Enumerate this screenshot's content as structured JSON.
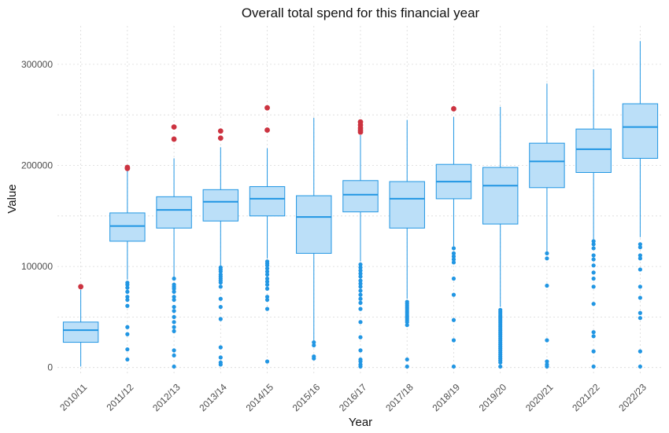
{
  "chart_data": {
    "type": "boxplot",
    "title": "Overall total spend for this financial year",
    "xlabel": "Year",
    "ylabel": "Value",
    "ylim": [
      -8000,
      338000
    ],
    "yticks": [
      0,
      100000,
      200000,
      300000
    ],
    "ytick_labels": [
      "0",
      "100000",
      "200000",
      "300000"
    ],
    "grid": true,
    "colors": {
      "box_fill": "#bbdff8",
      "box_line": "#2196e3",
      "outlier": "#2196e3",
      "max_outlier": "#cc3340"
    },
    "categories": [
      "2010/11",
      "2011/12",
      "2012/13",
      "2013/14",
      "2014/15",
      "2015/16",
      "2016/17",
      "2017/18",
      "2018/19",
      "2019/20",
      "2020/21",
      "2021/22",
      "2022/23"
    ],
    "boxes": [
      {
        "category": "2010/11",
        "whisker_low": 1000,
        "q1": 25000,
        "median": 37000,
        "q3": 45000,
        "whisker_high": 77000,
        "outliers": [],
        "max_outliers": [
          80000
        ]
      },
      {
        "category": "2011/12",
        "whisker_low": 87000,
        "q1": 125000,
        "median": 140000,
        "q3": 153000,
        "whisker_high": 195000,
        "outliers": [
          84000,
          82000,
          79000,
          75000,
          70000,
          67000,
          61000,
          40000,
          33000,
          18000,
          8000
        ],
        "max_outliers": [
          197000,
          198000
        ]
      },
      {
        "category": "2012/13",
        "whisker_low": 90000,
        "q1": 138000,
        "median": 156000,
        "q3": 169000,
        "whisker_high": 207000,
        "outliers": [
          88000,
          82000,
          80000,
          78000,
          75000,
          70000,
          67000,
          60000,
          56000,
          50000,
          45000,
          40000,
          36000,
          17000,
          12000,
          1000
        ],
        "max_outliers": [
          226000,
          238000
        ]
      },
      {
        "category": "2013/14",
        "whisker_low": 100000,
        "q1": 145000,
        "median": 164000,
        "q3": 176000,
        "whisker_high": 218000,
        "outliers": [
          99000,
          97000,
          95000,
          92000,
          90000,
          88000,
          86000,
          84000,
          80000,
          68000,
          60000,
          48000,
          20000,
          10000,
          5000,
          3000
        ],
        "max_outliers": [
          227000,
          234000
        ]
      },
      {
        "category": "2014/15",
        "whisker_low": 108000,
        "q1": 150000,
        "median": 167000,
        "q3": 179000,
        "whisker_high": 217000,
        "outliers": [
          105000,
          103000,
          101000,
          98000,
          95000,
          92000,
          88000,
          85000,
          82000,
          78000,
          70000,
          67000,
          58000,
          6000
        ],
        "max_outliers": [
          235000,
          257000
        ]
      },
      {
        "category": "2015/16",
        "whisker_low": 27000,
        "q1": 113000,
        "median": 149000,
        "q3": 170000,
        "whisker_high": 247000,
        "outliers": [
          25000,
          22000,
          11000,
          9000
        ],
        "max_outliers": []
      },
      {
        "category": "2016/17",
        "whisker_low": 105000,
        "q1": 154000,
        "median": 171000,
        "q3": 185000,
        "whisker_high": 230000,
        "outliers": [
          102000,
          99000,
          96000,
          93000,
          90000,
          86000,
          83000,
          80000,
          76000,
          72000,
          68000,
          64000,
          58000,
          45000,
          30000,
          17000,
          8000,
          6000,
          3000,
          1000
        ],
        "max_outliers": [
          233000,
          235000,
          237000,
          240000,
          243000
        ]
      },
      {
        "category": "2017/18",
        "whisker_low": 68000,
        "q1": 138000,
        "median": 167000,
        "q3": 184000,
        "whisker_high": 245000,
        "outliers": [
          65000,
          63000,
          61000,
          59000,
          57000,
          55000,
          53000,
          51000,
          49000,
          47000,
          45000,
          42000,
          8000,
          1000
        ],
        "max_outliers": []
      },
      {
        "category": "2018/19",
        "whisker_low": 120000,
        "q1": 167000,
        "median": 184000,
        "q3": 201000,
        "whisker_high": 248000,
        "outliers": [
          118000,
          113000,
          110000,
          107000,
          104000,
          88000,
          72000,
          47000,
          27000,
          1000
        ],
        "max_outliers": [
          256000
        ]
      },
      {
        "category": "2019/20",
        "whisker_low": 60000,
        "q1": 142000,
        "median": 180000,
        "q3": 198000,
        "whisker_high": 258000,
        "outliers": [
          57000,
          55000,
          53000,
          51000,
          49000,
          47000,
          45000,
          43000,
          41000,
          39000,
          37000,
          35000,
          33000,
          31000,
          29000,
          27000,
          25000,
          23000,
          21000,
          19000,
          17000,
          15000,
          13000,
          11000,
          9000,
          7000,
          5000,
          1000
        ],
        "max_outliers": []
      },
      {
        "category": "2020/21",
        "whisker_low": 115000,
        "q1": 178000,
        "median": 204000,
        "q3": 222000,
        "whisker_high": 281000,
        "outliers": [
          113000,
          108000,
          81000,
          27000,
          6000,
          3000,
          1000
        ],
        "max_outliers": []
      },
      {
        "category": "2021/22",
        "whisker_low": 127000,
        "q1": 193000,
        "median": 216000,
        "q3": 236000,
        "whisker_high": 295000,
        "outliers": [
          125000,
          122000,
          118000,
          111000,
          107000,
          101000,
          94000,
          88000,
          80000,
          63000,
          35000,
          31000,
          16000,
          1000
        ],
        "max_outliers": []
      },
      {
        "category": "2022/23",
        "whisker_low": 129000,
        "q1": 207000,
        "median": 238000,
        "q3": 261000,
        "whisker_high": 323000,
        "outliers": [
          122000,
          119000,
          111000,
          108000,
          97000,
          80000,
          69000,
          54000,
          49000,
          16000,
          1000
        ],
        "max_outliers": []
      }
    ]
  }
}
